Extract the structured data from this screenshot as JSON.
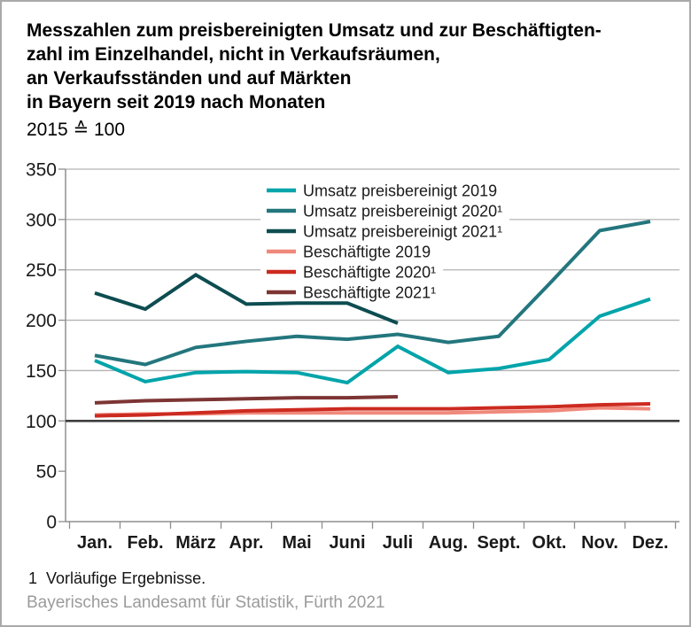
{
  "title": {
    "text": "Messzahlen zum preisbereinigten Umsatz und zur Beschäftigten-\nzahl im Einzelhandel, nicht in Verkaufsräumen,\nan Verkaufsständen und auf Märkten\nin Bayern seit 2019 nach Monaten",
    "subtitle": "2015 ≙ 100"
  },
  "footnote": "1  Vorläufige Ergebnisse.",
  "source": "Bayerisches Landesamt für Statistik, Fürth 2021",
  "chart_data": {
    "type": "line",
    "categories": [
      "Jan.",
      "Feb.",
      "März",
      "Apr.",
      "Mai",
      "Juni",
      "Juli",
      "Aug.",
      "Sept.",
      "Okt.",
      "Nov.",
      "Dez."
    ],
    "ylim": [
      0,
      350
    ],
    "yticks": [
      0,
      50,
      100,
      150,
      200,
      250,
      300,
      350
    ],
    "grid_ticks": [
      150,
      200,
      250,
      300,
      350
    ],
    "baseline_value": 100,
    "grid": true,
    "legend_position": "inside-top",
    "axis_colors": {
      "grid": "#b3b3b3",
      "axis": "#8f8f8f",
      "baseline": "#3d3d3d",
      "text": "#1a1a1a"
    },
    "series": [
      {
        "name": "Umsatz preisbereinigt 2019",
        "color": "#00a4aa",
        "values": [
          160,
          139,
          148,
          149,
          148,
          138,
          174,
          148,
          152,
          161,
          204,
          221
        ]
      },
      {
        "name": "Umsatz preisbereinigt 2020¹",
        "color": "#23767d",
        "values": [
          165,
          156,
          173,
          179,
          184,
          181,
          186,
          178,
          184,
          236,
          289,
          298
        ]
      },
      {
        "name": "Umsatz preisbereinigt 2021¹",
        "color": "#0d4d51",
        "values": [
          227,
          211,
          245,
          216,
          217,
          217,
          197
        ]
      },
      {
        "name": "Beschäftigte 2019",
        "color": "#f0897c",
        "values": [
          106,
          107,
          107,
          108,
          108,
          108,
          108,
          108,
          109,
          110,
          113,
          112
        ]
      },
      {
        "name": "Beschäftigte 2020¹",
        "color": "#cc2a20",
        "values": [
          105,
          106,
          108,
          110,
          111,
          112,
          112,
          112,
          113,
          114,
          116,
          117
        ]
      },
      {
        "name": "Beschäftigte 2021¹",
        "color": "#7d3534",
        "values": [
          118,
          120,
          121,
          122,
          123,
          123,
          124
        ]
      }
    ]
  }
}
